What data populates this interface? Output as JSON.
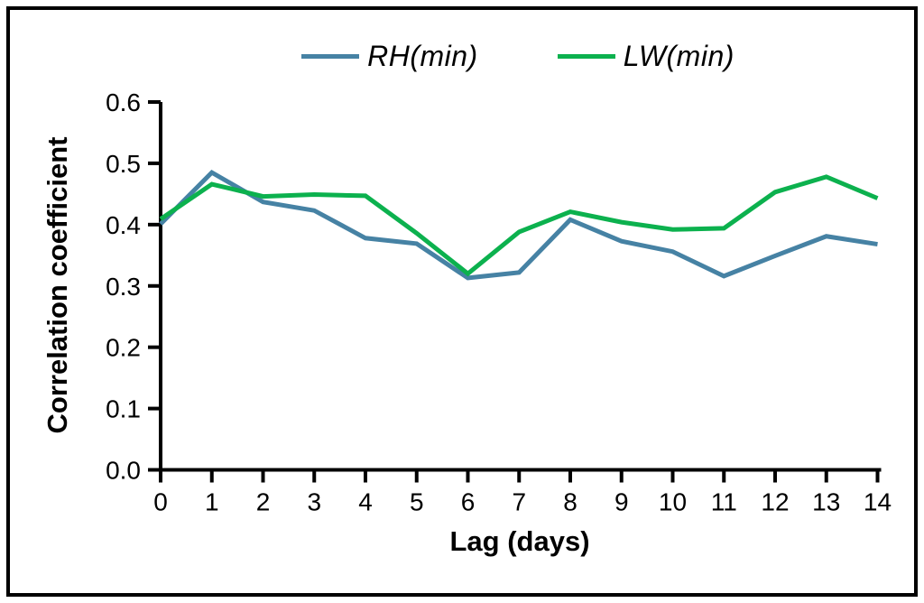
{
  "figure": {
    "background": "#ffffff",
    "border_color": "#000000",
    "axis_color": "#000000",
    "tick_label_color": "#000000"
  },
  "chart_data": {
    "type": "line",
    "title": "",
    "xlabel": "Lag (days)",
    "ylabel": "Correlation coefficient",
    "x": [
      0,
      1,
      2,
      3,
      4,
      5,
      6,
      7,
      8,
      9,
      10,
      11,
      12,
      13,
      14
    ],
    "xtick_labels": [
      "0",
      "1",
      "2",
      "3",
      "4",
      "5",
      "6",
      "7",
      "8",
      "9",
      "10",
      "11",
      "12",
      "13",
      "14"
    ],
    "ytick_labels": [
      "0.0",
      "0.1",
      "0.2",
      "0.3",
      "0.4",
      "0.5",
      "0.6"
    ],
    "ylim": [
      0.0,
      0.6
    ],
    "grid": false,
    "legend_position": "top-center",
    "series": [
      {
        "name": "RH(min)",
        "color": "#4682a4",
        "values": [
          0.401,
          0.485,
          0.437,
          0.423,
          0.378,
          0.369,
          0.313,
          0.322,
          0.408,
          0.373,
          0.356,
          0.316,
          0.349,
          0.381,
          0.368
        ]
      },
      {
        "name": "LW(min)",
        "color": "#0cb14e",
        "values": [
          0.409,
          0.466,
          0.446,
          0.449,
          0.447,
          0.386,
          0.32,
          0.388,
          0.421,
          0.404,
          0.392,
          0.394,
          0.453,
          0.478,
          0.443
        ]
      }
    ]
  }
}
